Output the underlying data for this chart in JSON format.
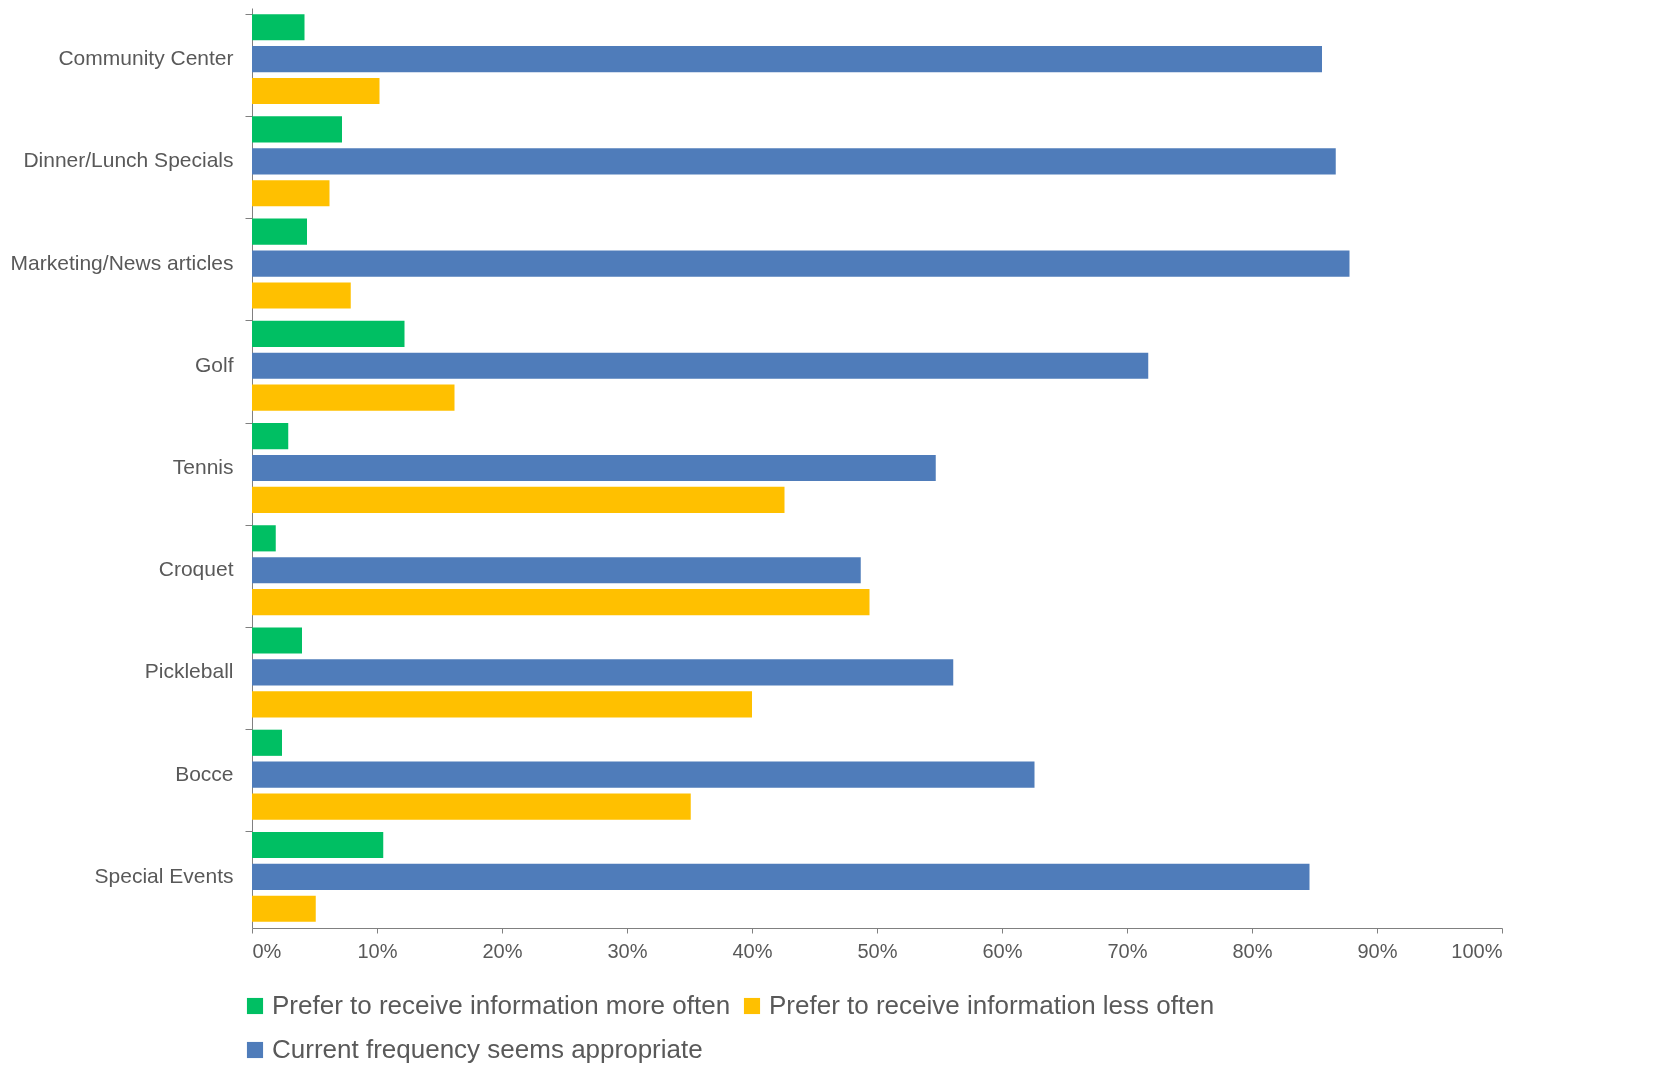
{
  "chart_data": {
    "type": "bar",
    "orientation": "horizontal",
    "categories": [
      "Community Center",
      "Dinner/Lunch Specials",
      "Marketing/News articles",
      "Golf",
      "Tennis",
      "Croquet",
      "Pickleball",
      "Bocce",
      "Special Events"
    ],
    "series": [
      {
        "name": "Prefer to receive information more often",
        "color": "#00bf63",
        "values": [
          4.2,
          7.2,
          4.4,
          12.2,
          2.9,
          1.9,
          4.0,
          2.4,
          10.5
        ]
      },
      {
        "name": "Current frequency seems appropriate",
        "color": "#4f7cba",
        "values": [
          85.6,
          86.7,
          87.8,
          71.7,
          54.7,
          48.7,
          56.1,
          62.6,
          84.6
        ]
      },
      {
        "name": "Prefer to receive information less often",
        "color": "#ffc000",
        "values": [
          10.2,
          6.2,
          7.9,
          16.2,
          42.6,
          49.4,
          40.0,
          35.1,
          5.1
        ]
      }
    ],
    "xlim": [
      0,
      100
    ],
    "xticks": [
      {
        "value": 0,
        "label": "0%"
      },
      {
        "value": 10,
        "label": "10%"
      },
      {
        "value": 20,
        "label": "20%"
      },
      {
        "value": 30,
        "label": "30%"
      },
      {
        "value": 40,
        "label": "40%"
      },
      {
        "value": 50,
        "label": "50%"
      },
      {
        "value": 60,
        "label": "60%"
      },
      {
        "value": 70,
        "label": "70%"
      },
      {
        "value": 80,
        "label": "80%"
      },
      {
        "value": 90,
        "label": "90%"
      },
      {
        "value": 100,
        "label": "100%"
      }
    ],
    "grid": false,
    "legend": "bottom"
  }
}
